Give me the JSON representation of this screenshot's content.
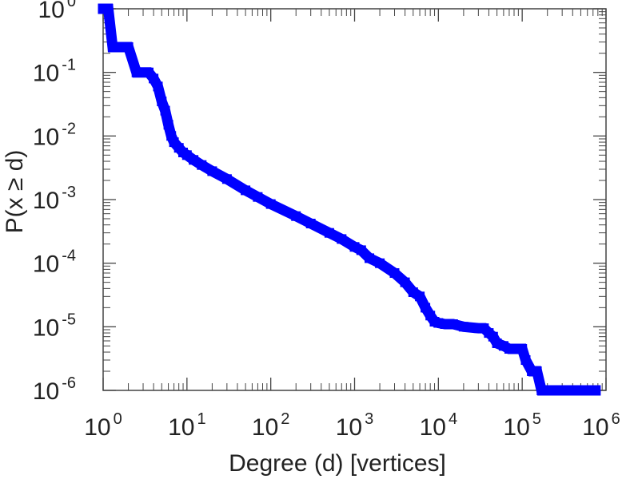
{
  "chart_data": {
    "type": "line",
    "xlabel": "Degree (d) [vertices]",
    "ylabel": "P(x ≥ d)",
    "x_scale": "log",
    "y_scale": "log",
    "xlim": [
      1,
      1000000
    ],
    "ylim": [
      1e-06,
      1
    ],
    "grid": false,
    "x_ticks": [
      {
        "base": "10",
        "exp": "0",
        "value": 1
      },
      {
        "base": "10",
        "exp": "1",
        "value": 10
      },
      {
        "base": "10",
        "exp": "2",
        "value": 100
      },
      {
        "base": "10",
        "exp": "3",
        "value": 1000
      },
      {
        "base": "10",
        "exp": "4",
        "value": 10000
      },
      {
        "base": "10",
        "exp": "5",
        "value": 100000
      },
      {
        "base": "10",
        "exp": "6",
        "value": 1000000
      }
    ],
    "y_ticks": [
      {
        "base": "10",
        "exp": "0",
        "value": 1
      },
      {
        "base": "10",
        "exp": "-1",
        "value": 0.1
      },
      {
        "base": "10",
        "exp": "-2",
        "value": 0.01
      },
      {
        "base": "10",
        "exp": "-3",
        "value": 0.001
      },
      {
        "base": "10",
        "exp": "-4",
        "value": 0.0001
      },
      {
        "base": "10",
        "exp": "-5",
        "value": 1e-05
      },
      {
        "base": "10",
        "exp": "-6",
        "value": 1e-06
      }
    ],
    "colors": {
      "series": "#0000ff",
      "axes": "#444444"
    },
    "series": [
      {
        "x": [
          1,
          1.15,
          1.3,
          1.6,
          2,
          2.5,
          3,
          3.5,
          4,
          4.5,
          5,
          5.5,
          6,
          6.5,
          7,
          8,
          9,
          10,
          12,
          15,
          20,
          30,
          50,
          70,
          100,
          200,
          300,
          500,
          700,
          1000,
          1200,
          1500,
          2000,
          3000,
          4000,
          5000,
          6000,
          7000,
          8000,
          9000,
          10000,
          12000,
          15000,
          20000,
          30000,
          35000,
          40000,
          45000,
          50000,
          60000,
          70000,
          80000,
          90000,
          100000,
          110000,
          130000,
          150000,
          170000,
          200000,
          300000,
          500000,
          750000
        ],
        "y": [
          1,
          1,
          0.25,
          0.25,
          0.25,
          0.1,
          0.1,
          0.1,
          0.08,
          0.06,
          0.035,
          0.025,
          0.015,
          0.01,
          0.008,
          0.0065,
          0.0055,
          0.005,
          0.0042,
          0.0035,
          0.0028,
          0.0021,
          0.0014,
          0.0011,
          0.00085,
          0.00055,
          0.00042,
          0.0003,
          0.00024,
          0.00018,
          0.00016,
          0.00012,
          0.0001,
          7e-05,
          5e-05,
          3.5e-05,
          3e-05,
          2e-05,
          1.5e-05,
          1.2e-05,
          1.15e-05,
          1.1e-05,
          1.1e-05,
          1e-05,
          9.5e-06,
          9.5e-06,
          8e-06,
          7e-06,
          5.5e-06,
          5e-06,
          4.5e-06,
          4.5e-06,
          4.5e-06,
          4.5e-06,
          3e-06,
          2e-06,
          2e-06,
          1e-06,
          1e-06,
          1e-06,
          1e-06,
          1e-06
        ]
      }
    ]
  }
}
